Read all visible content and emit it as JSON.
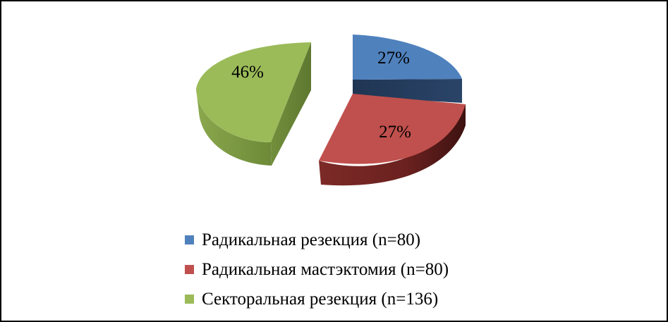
{
  "chart_data": {
    "type": "pie",
    "style": "3d-exploded",
    "series": [
      {
        "name": "Радикальная резекция (n=80)",
        "value": 27,
        "label": "27%",
        "color": "#4f81bd"
      },
      {
        "name": "Радикальная мастэктомия (n=80)",
        "value": 27,
        "label": "27%",
        "color": "#c0504d"
      },
      {
        "name": "Секторальная резекция (n=136)",
        "value": 46,
        "label": "46%",
        "color": "#9bbb59"
      }
    ],
    "legend_position": "bottom"
  }
}
